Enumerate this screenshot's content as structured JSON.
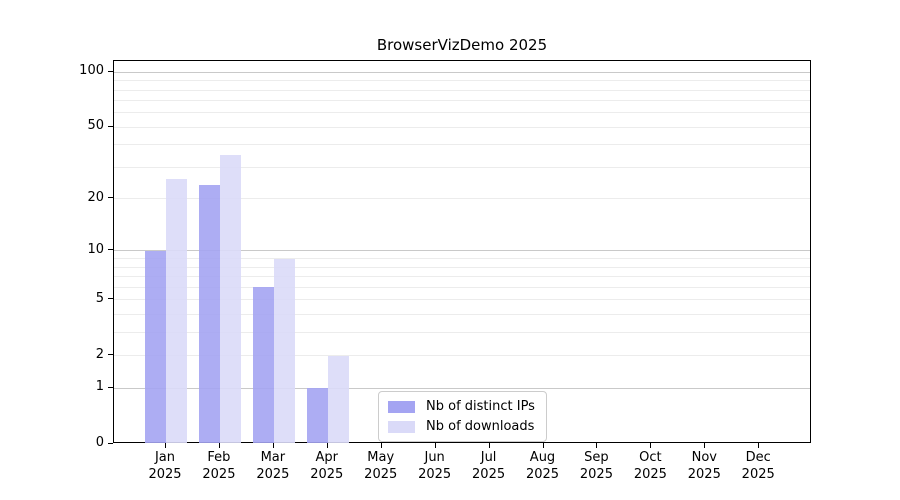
{
  "chart_data": {
    "type": "bar",
    "title": "BrowserVizDemo 2025",
    "xlabel": "",
    "ylabel": "",
    "y_scale": "log10(1+x)",
    "ylim": [
      0,
      110
    ],
    "grid": true,
    "legend_position": "lower center",
    "categories": [
      "Jan",
      "Feb",
      "Mar",
      "Apr",
      "May",
      "Jun",
      "Jul",
      "Aug",
      "Sep",
      "Oct",
      "Nov",
      "Dec"
    ],
    "category_year": "2025",
    "series": [
      {
        "name": "Nb of distinct IPs",
        "color": "#a4a4f2",
        "values": [
          10,
          24,
          6,
          1,
          0,
          0,
          0,
          0,
          0,
          0,
          0,
          0
        ]
      },
      {
        "name": "Nb of downloads",
        "color": "#dadaf8",
        "values": [
          26,
          35,
          9,
          2,
          0,
          0,
          0,
          0,
          0,
          0,
          0,
          0
        ]
      }
    ],
    "yticks": [
      0,
      1,
      2,
      5,
      10,
      20,
      50,
      100
    ],
    "major_gridlines": [
      1,
      10,
      100
    ],
    "minor_gridlines": [
      2,
      3,
      4,
      5,
      6,
      7,
      8,
      9,
      20,
      30,
      40,
      50,
      60,
      70,
      80,
      90
    ]
  },
  "colors": {
    "major_grid": "#c9c9c9",
    "minor_grid": "#ececec",
    "spine": "#000000",
    "legend_border": "#cccccc"
  }
}
